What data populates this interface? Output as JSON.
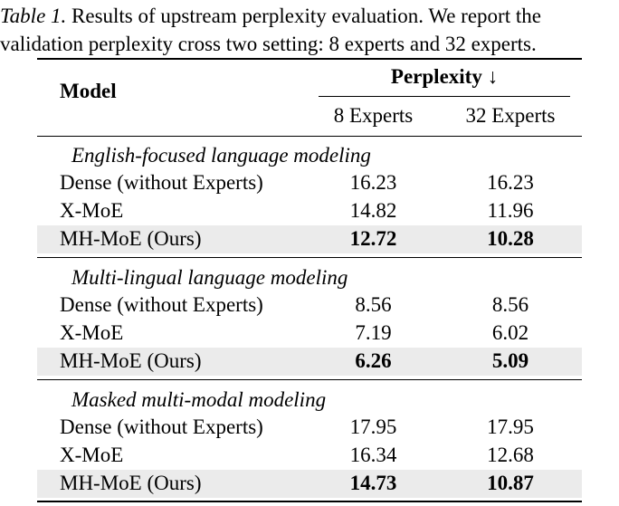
{
  "caption": {
    "label": "Table 1.",
    "line1": " Results of upstream perplexity evaluation. We report the",
    "line2": "validation perplexity cross two setting: 8 experts and 32 experts."
  },
  "header": {
    "model": "Model",
    "perplexity": "Perplexity ↓",
    "col1": "8 Experts",
    "col2": "32 Experts"
  },
  "sections": [
    {
      "title": "English-focused language modeling",
      "rows": [
        {
          "model": "Dense (without Experts)",
          "v8": "16.23",
          "v32": "16.23"
        },
        {
          "model": "X-MoE",
          "v8": "14.82",
          "v32": "11.96"
        },
        {
          "model": "MH-MoE (Ours)",
          "v8": "12.72",
          "v32": "10.28"
        }
      ]
    },
    {
      "title": "Multi-lingual language modeling",
      "rows": [
        {
          "model": "Dense (without Experts)",
          "v8": "8.56",
          "v32": "8.56"
        },
        {
          "model": "X-MoE",
          "v8": "7.19",
          "v32": "6.02"
        },
        {
          "model": "MH-MoE (Ours)",
          "v8": "6.26",
          "v32": "5.09"
        }
      ]
    },
    {
      "title": "Masked multi-modal modeling",
      "rows": [
        {
          "model": "Dense (without Experts)",
          "v8": "17.95",
          "v32": "17.95"
        },
        {
          "model": "X-MoE",
          "v8": "16.34",
          "v32": "12.68"
        },
        {
          "model": "MH-MoE (Ours)",
          "v8": "14.73",
          "v32": "10.87"
        }
      ]
    }
  ]
}
